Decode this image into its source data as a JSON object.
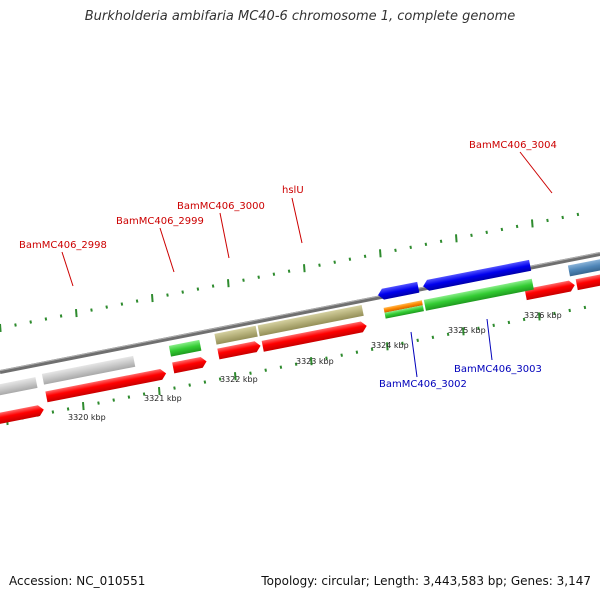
{
  "title": "Burkholderia ambifaria MC40-6 chromosome 1, complete genome",
  "footer": {
    "accession": "Accession: NC_010551",
    "topology": "Topology: circular; Length: 3,443,583 bp; Genes: 3,147"
  },
  "colors": {
    "backbone": "#888888",
    "tick": "#2e8b2e",
    "cds_red": "#ff0000",
    "gene_grey": "#c8c8c8",
    "gene_olive": "#b5b07a",
    "gene_green": "#33cc33",
    "gene_blue": "#0000ee",
    "gene_orange": "#ff8800",
    "gene_steelblue": "#4f86b8",
    "label_forward": "#cc0000",
    "label_reverse": "#0000bb"
  },
  "gene_labels": [
    {
      "id": "bam2998",
      "text": "BamMC406_2998",
      "strand": "forward"
    },
    {
      "id": "bam2999",
      "text": "BamMC406_2999",
      "strand": "forward"
    },
    {
      "id": "bam3000",
      "text": "BamMC406_3000",
      "strand": "forward"
    },
    {
      "id": "hslu",
      "text": "hslU",
      "strand": "forward"
    },
    {
      "id": "bam3004",
      "text": "BamMC406_3004",
      "strand": "forward"
    },
    {
      "id": "bam3002",
      "text": "BamMC406_3002",
      "strand": "reverse"
    },
    {
      "id": "bam3003",
      "text": "BamMC406_3003",
      "strand": "reverse"
    }
  ],
  "scale_labels": [
    "3320 kbp",
    "3321 kbp",
    "3322 kbp",
    "3323 kbp",
    "3324 kbp",
    "3325 kbp",
    "3326 kbp"
  ]
}
